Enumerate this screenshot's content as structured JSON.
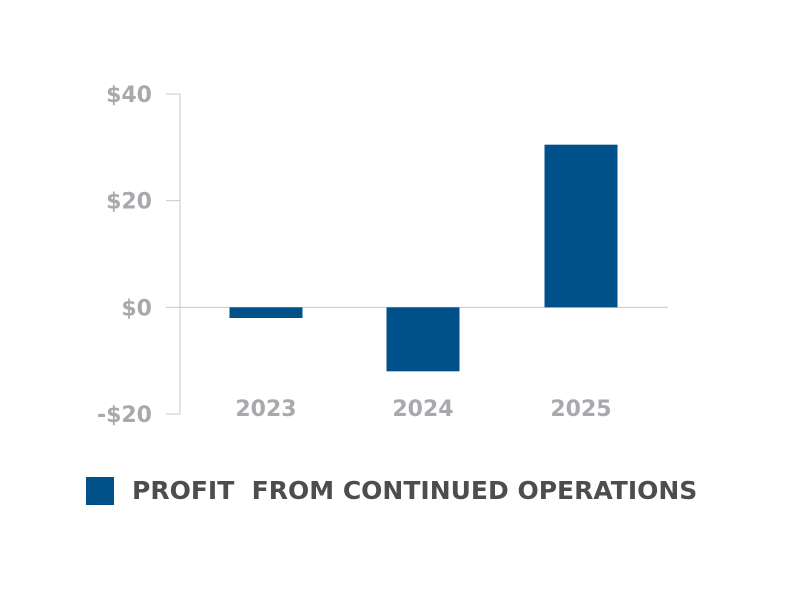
{
  "chart_data": {
    "type": "bar",
    "categories": [
      "2023",
      "2024",
      "2025"
    ],
    "values": [
      -2,
      -12,
      30.5
    ],
    "ylim": [
      -20,
      40
    ],
    "yticks": [
      -20,
      0,
      20,
      40
    ],
    "ytick_labels": [
      "-$20",
      "$0",
      "$20",
      "$40"
    ],
    "series": [
      {
        "name": "PROFIT  FROM CONTINUED OPERATIONS",
        "values": [
          -2,
          -12,
          30.5
        ]
      }
    ],
    "colors": {
      "bar": "#00508a",
      "axis": "#c8c8c8",
      "tick_text": "#a7a9ac",
      "legend_text": "#4d4d4f"
    },
    "legend_position": "bottom-left",
    "grid": false
  }
}
